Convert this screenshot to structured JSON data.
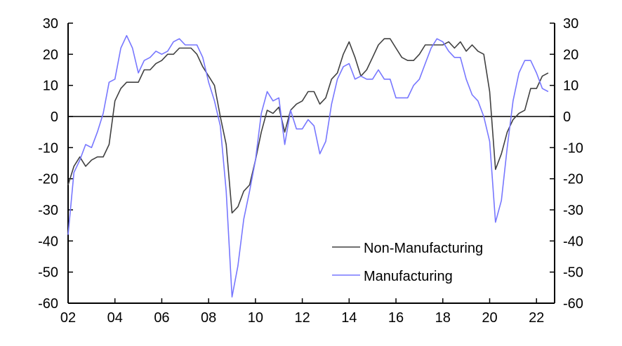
{
  "chart_data": {
    "type": "line",
    "title": "",
    "xlabel": "",
    "ylabel": "",
    "x_start": "2002Q1",
    "frequency": "quarterly",
    "ylim": [
      -60,
      30
    ],
    "yticks": [
      30,
      20,
      10,
      0,
      -10,
      -20,
      -30,
      -40,
      -50,
      -60
    ],
    "ytick_labels": [
      "30",
      "20",
      "10",
      "0",
      "-10",
      "-20",
      "-30",
      "-40",
      "-50",
      "-60"
    ],
    "xtick_labels": [
      "02",
      "04",
      "06",
      "08",
      "10",
      "12",
      "14",
      "16",
      "18",
      "20",
      "22"
    ],
    "grid": false,
    "legend_position": "bottom-right",
    "series": [
      {
        "name": "Non-Manufacturing",
        "color": "#404040",
        "values": [
          -22,
          -16,
          -13,
          -16,
          -14,
          -13,
          -13,
          -9,
          5,
          9,
          11,
          11,
          11,
          15,
          15,
          17,
          18,
          20,
          20,
          22,
          22,
          22,
          20,
          16,
          13,
          10,
          0,
          -9,
          -31,
          -29,
          -24,
          -22,
          -14,
          -5,
          2,
          1,
          3,
          -5,
          2,
          4,
          5,
          8,
          8,
          4,
          6,
          12,
          14,
          20,
          24,
          19,
          13,
          15,
          19,
          23,
          25,
          25,
          22,
          19,
          18,
          18,
          20,
          23,
          23,
          23,
          23,
          24,
          22,
          24,
          21,
          23,
          21,
          20,
          8,
          -17,
          -12,
          -5,
          -1,
          1,
          2,
          9,
          9,
          13,
          14
        ]
      },
      {
        "name": "Manufacturing",
        "color": "#7777ff",
        "values": [
          -38,
          -18,
          -14,
          -9,
          -10,
          -5,
          1,
          11,
          12,
          22,
          26,
          22,
          14,
          18,
          19,
          21,
          20,
          21,
          24,
          25,
          23,
          23,
          23,
          19,
          11,
          5,
          -3,
          -24,
          -58,
          -48,
          -33,
          -24,
          -14,
          1,
          8,
          5,
          6,
          -9,
          2,
          -4,
          -4,
          -1,
          -3,
          -12,
          -8,
          4,
          12,
          16,
          17,
          12,
          13,
          12,
          12,
          15,
          12,
          12,
          6,
          6,
          6,
          10,
          12,
          17,
          22,
          25,
          24,
          21,
          19,
          19,
          12,
          7,
          5,
          0,
          -8,
          -34,
          -27,
          -10,
          5,
          14,
          18,
          18,
          14,
          9,
          8
        ]
      }
    ]
  }
}
